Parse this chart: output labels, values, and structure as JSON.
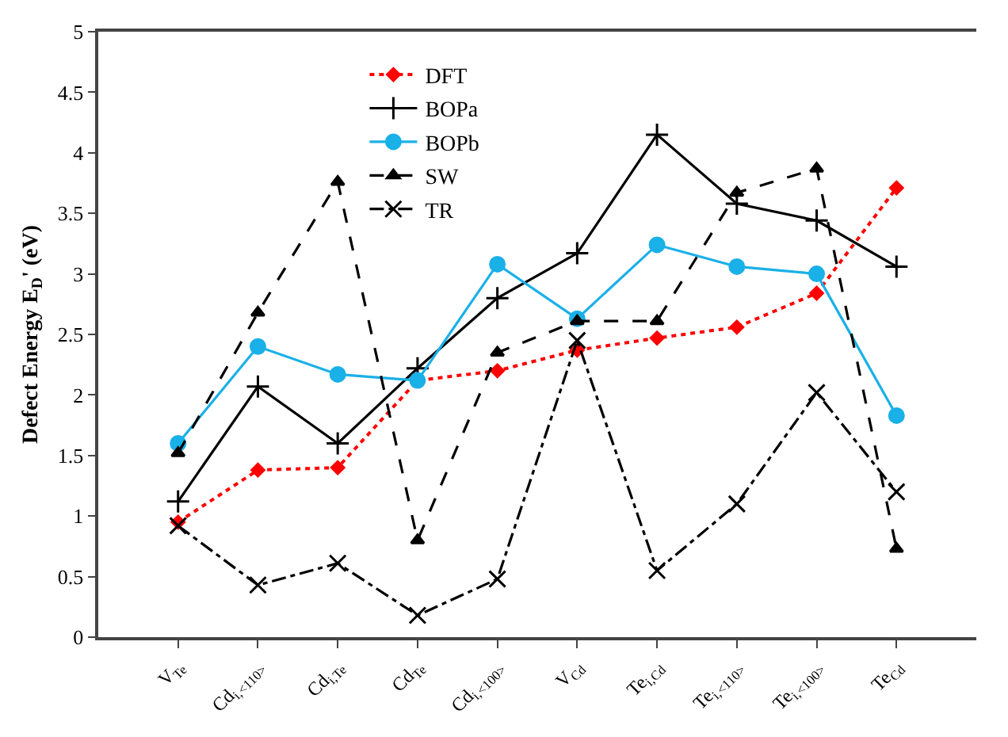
{
  "chart_data": {
    "type": "line",
    "ylabel": "Defect Energy E$_{D}$' (eV)",
    "categories": [
      "V$_{Te}$",
      "Cd$_{i,<110>}$",
      "Cd$_{i,Te}$",
      "Cd$_{Te}$",
      "Cd$_{i,<100>}$",
      "V$_{Cd}$",
      "Te$_{i,Cd}$",
      "Te$_{i,<110>}$",
      "Te$_{i,<100>}$",
      "Te$_{Cd}$"
    ],
    "ylim": [
      0,
      5
    ],
    "yticks": [
      0,
      0.5,
      1,
      1.5,
      2,
      2.5,
      3,
      3.5,
      4,
      4.5,
      5
    ],
    "grid": false,
    "legend": "top left",
    "series": [
      {
        "name": "DFT",
        "color": "#ff0000",
        "marker": "diamond",
        "line_style": "dotted",
        "values": [
          0.95,
          1.38,
          1.4,
          2.12,
          2.2,
          2.37,
          2.47,
          2.56,
          2.84,
          3.71
        ]
      },
      {
        "name": "BOPa",
        "color": "#000000",
        "marker": "cross",
        "line_style": "solid",
        "values": [
          1.12,
          2.07,
          1.6,
          2.22,
          2.8,
          3.17,
          4.15,
          3.58,
          3.44,
          3.06
        ]
      },
      {
        "name": "BOPb",
        "color": "#1ab0e8",
        "marker": "circle",
        "line_style": "solid",
        "values": [
          1.6,
          2.4,
          2.17,
          2.12,
          3.08,
          2.63,
          3.24,
          3.06,
          3.0,
          1.83
        ]
      },
      {
        "name": "SW",
        "color": "#000000",
        "marker": "triangle",
        "line_style": "dashed",
        "values": [
          1.52,
          2.68,
          3.76,
          0.8,
          2.35,
          2.61,
          2.61,
          3.67,
          3.87,
          0.73
        ]
      },
      {
        "name": "TR",
        "color": "#000000",
        "marker": "cross",
        "line_style": "dashdot",
        "values": [
          0.92,
          0.43,
          0.61,
          0.18,
          0.48,
          2.45,
          0.55,
          1.1,
          2.02,
          1.2
        ]
      }
    ]
  }
}
